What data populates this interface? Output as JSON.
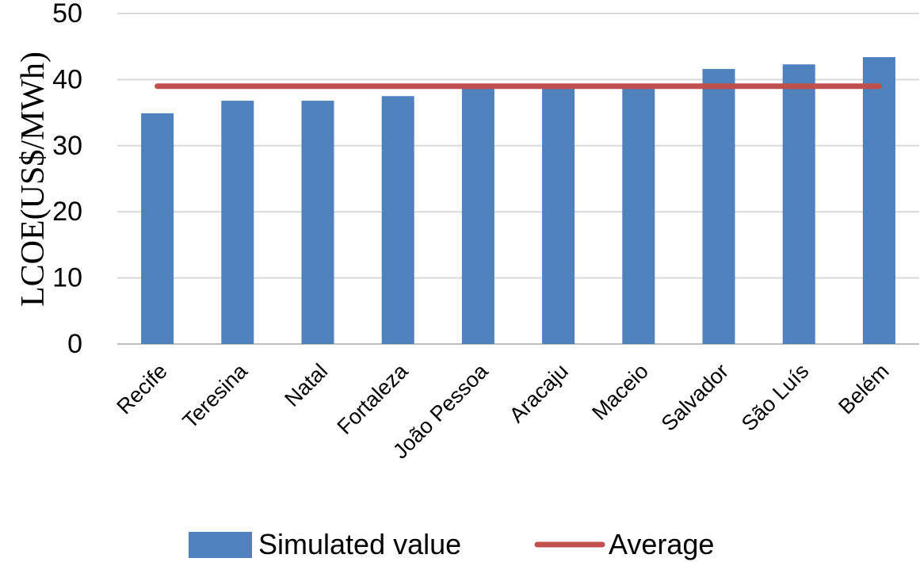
{
  "chart_data": {
    "type": "bar",
    "title": "",
    "xlabel": "",
    "ylabel": "LCOE(US$/MWh)",
    "ylim": [
      0,
      50
    ],
    "yticks": [
      0,
      10,
      20,
      30,
      40,
      50
    ],
    "categories": [
      "Recife",
      "Teresina",
      "Natal",
      "Fortaleza",
      "João Pessoa",
      "Aracaju",
      "Maceio",
      "Salvador",
      "São Luís",
      "Belém"
    ],
    "series": [
      {
        "name": "Simulated value",
        "type": "bar",
        "color": "#4f81bd",
        "values": [
          34.9,
          36.8,
          36.8,
          37.5,
          38.7,
          38.7,
          38.9,
          41.6,
          42.3,
          43.4
        ]
      },
      {
        "name": "Average",
        "type": "line",
        "color": "#c0504d",
        "values": [
          39.0,
          39.0,
          39.0,
          39.0,
          39.0,
          39.0,
          39.0,
          39.0,
          39.0,
          39.0
        ]
      }
    ],
    "grid": true,
    "legend_position": "bottom"
  }
}
